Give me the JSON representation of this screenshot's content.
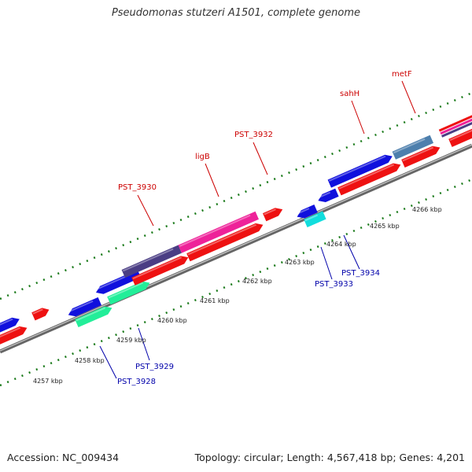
{
  "title": "Pseudomonas stutzeri A1501, complete genome",
  "footer": {
    "accession": "Accession: NC_009434",
    "topology": "Topology: circular; Length: 4,567,418 bp; Genes: 4,201"
  },
  "colors": {
    "top_label": "#cc0000",
    "bottom_label": "#0000aa",
    "backbone": "#888888",
    "tick": "#1a7a1a",
    "cds_blue": "#1010dd",
    "cds_red": "#ee1111",
    "navy": "#4a3d84",
    "pink": "#ee2299",
    "steel": "#4d7fad",
    "cyan": "#11dddd",
    "teal": "#22ee99"
  },
  "scale_labels": [
    "4257 kbp",
    "4258 kbp",
    "4259 kbp",
    "4260 kbp",
    "4261 kbp",
    "4262 kbp",
    "4263 kbp",
    "4264 kbp",
    "4265 kbp",
    "4266 kbp"
  ],
  "top_gene_labels": [
    "PST_3930",
    "ligB",
    "PST_3932",
    "sahH",
    "metF"
  ],
  "bottom_gene_labels": [
    "PST_3928",
    "PST_3929",
    "PST_3933",
    "PST_3934"
  ]
}
